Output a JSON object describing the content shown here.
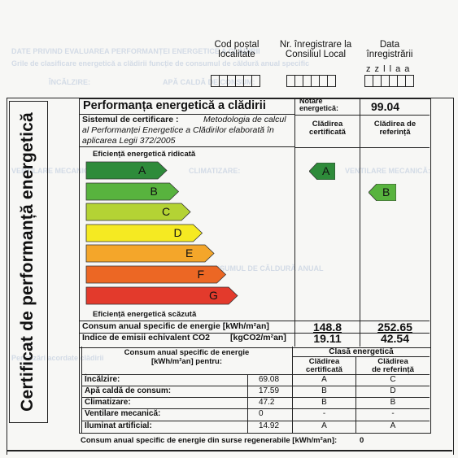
{
  "header": {
    "cod_postal": "Cod poștal\nlocalitate",
    "nr_inregistrare": "Nr. înregistrare la\nConsiliul Local",
    "data": "Data\nînregistrării",
    "date_format": "z z l l a a"
  },
  "side_title": "Certificat de performanță energetică",
  "performance": {
    "title": "Performanța energetică a clădirii",
    "notare_label": "Notare\nenergetică:",
    "notare_value": "99.04",
    "system_label": "Sistemul de certificare :",
    "system_text_1": "Metodologia de calcul",
    "system_text_2": "al Performanței Energetice a Clădirilor elaborată în",
    "system_text_3": "aplicarea Legii 372/2005",
    "col_certificata": "Clădirea\ncertificată",
    "col_referinta": "Clădirea de\nreferință",
    "high_efficiency": "Eficiență energetică ridicată",
    "low_efficiency": "Eficiență energetică scăzută"
  },
  "energy_classes": [
    {
      "label": "A",
      "color": "#2e8b3a"
    },
    {
      "label": "B",
      "color": "#58b33e"
    },
    {
      "label": "C",
      "color": "#b4d334"
    },
    {
      "label": "D",
      "color": "#f5ea22"
    },
    {
      "label": "E",
      "color": "#f4a62a"
    },
    {
      "label": "F",
      "color": "#ec6724"
    },
    {
      "label": "G",
      "color": "#e33a2c"
    }
  ],
  "certified_class": {
    "label": "A",
    "color": "#2e8b3a"
  },
  "reference_class": {
    "label": "B",
    "color": "#58b33e"
  },
  "consumption": {
    "label": "Consum anual specific de energie [kWh/m²an]",
    "certified": "148.8",
    "reference": "252.65"
  },
  "co2": {
    "label": "Indice de emisii echivalent CO2",
    "unit": "[kgCO2/m²an]",
    "certified": "19.11",
    "reference": "42.54"
  },
  "breakdown": {
    "header_1": "Consum anual specific de energie",
    "header_2": "[kWh/m²an] pentru:",
    "class_header": "Clasă energetică",
    "col_certificata": "Clădirea\ncertificată",
    "col_referinta": "Clădirea\nde referință",
    "rows": [
      {
        "label": "Încălzire:",
        "value": "69.08",
        "cert": "A",
        "ref": "C"
      },
      {
        "label": "Apă caldă de consum:",
        "value": "17.59",
        "cert": "B",
        "ref": "D"
      },
      {
        "label": "Climatizare:",
        "value": "47.2",
        "cert": "B",
        "ref": "B"
      },
      {
        "label": "Ventilare mecanică:",
        "value": "0",
        "cert": "-",
        "ref": "-"
      },
      {
        "label": "Iluminat artificial:",
        "value": "14.92",
        "cert": "A",
        "ref": "A"
      }
    ]
  },
  "renewable": {
    "label": "Consum anual specific de energie din surse regenerabile  [kWh/m²an]:",
    "value": "0"
  }
}
